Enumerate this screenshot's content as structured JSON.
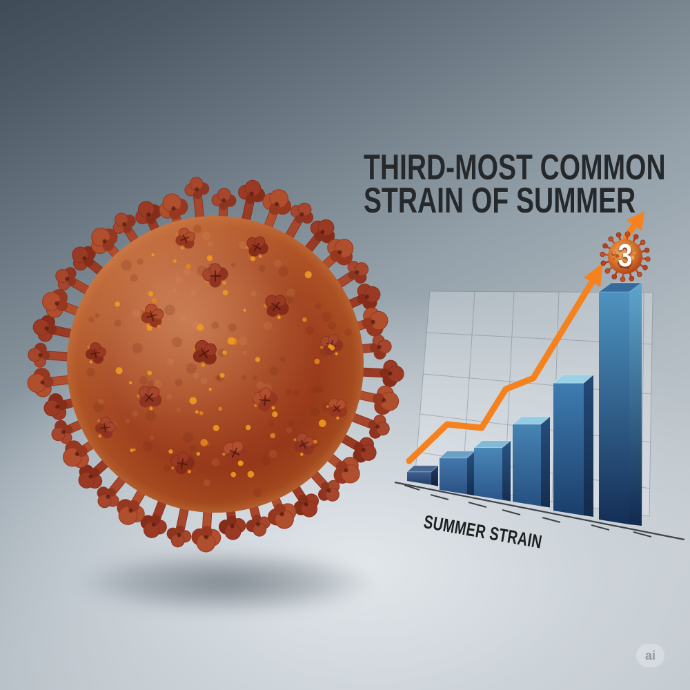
{
  "headline": {
    "line1": "THIRD-MOST COMMON",
    "line2": "STRAIN OF SUMMER"
  },
  "chart_data": {
    "type": "bar",
    "title": "THIRD-MOST COMMON STRAIN OF SUMMER",
    "categories": [
      "",
      "",
      "",
      "",
      "",
      ""
    ],
    "values": [
      4,
      14,
      21,
      34,
      56,
      100
    ],
    "ylim": [
      0,
      100
    ],
    "xlabel": "SUMMER STRAIN",
    "ylabel": "",
    "grid": true,
    "legend_position": "none",
    "trend_arrow": {
      "style": "rising-polyline-arrow",
      "color": "#f5821f"
    },
    "annotation": {
      "label": "3",
      "position": "above-tallest-bar"
    }
  },
  "badge": {
    "label": "3"
  },
  "watermark": {
    "label": "ai"
  },
  "icons": {
    "virus_main": "coronavirus-3d-illustration",
    "virus_badge": "coronavirus-badge-icon",
    "trend_arrow": "up-right-arrow-icon",
    "watermark_badge": "ai-watermark-pill"
  },
  "colors": {
    "accent_orange": "#f5821f",
    "bar_front_light": "#4e93c0",
    "bar_front_dark": "#142e56",
    "bar_top_light": "#99d1e7",
    "virus_body": "#9d3f1e",
    "headline_text": "#26292c",
    "background_top_left": "#3f4b56",
    "background_bottom": "#c6ccd1",
    "axis_line": "#3d4349"
  }
}
